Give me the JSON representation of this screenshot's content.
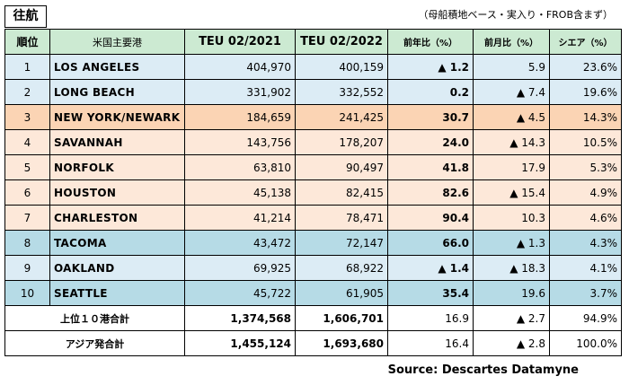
{
  "header": {
    "direction_label": "往航",
    "note": "（母船積地ベース・実入り・FROB含まず）"
  },
  "columns": [
    "順位",
    "米国主要港",
    "TEU 02/2021",
    "TEU 02/2022",
    "前年比（%）",
    "前月比（%）",
    "シエア（%）"
  ],
  "rows": [
    {
      "rank": "1",
      "port": "LOS ANGELES",
      "teu2021": "404,970",
      "teu2022": "400,159",
      "yoy": "▲ 1.2",
      "mom": "5.9",
      "share": "23.6%",
      "style": "blue"
    },
    {
      "rank": "2",
      "port": "LONG BEACH",
      "teu2021": "331,902",
      "teu2022": "332,552",
      "yoy": "0.2",
      "mom": "▲ 7.4",
      "share": "19.6%",
      "style": "blue"
    },
    {
      "rank": "3",
      "port": "NEW YORK/NEWARK",
      "teu2021": "184,659",
      "teu2022": "241,425",
      "yoy": "30.7",
      "mom": "▲ 4.5",
      "share": "14.3%",
      "style": "orange"
    },
    {
      "rank": "4",
      "port": "SAVANNAH",
      "teu2021": "143,756",
      "teu2022": "178,207",
      "yoy": "24.0",
      "mom": "▲ 14.3",
      "share": "10.5%",
      "style": "peach"
    },
    {
      "rank": "5",
      "port": "NORFOLK",
      "teu2021": "63,810",
      "teu2022": "90,497",
      "yoy": "41.8",
      "mom": "17.9",
      "share": "5.3%",
      "style": "peach"
    },
    {
      "rank": "6",
      "port": "HOUSTON",
      "teu2021": "45,138",
      "teu2022": "82,415",
      "yoy": "82.6",
      "mom": "▲ 15.4",
      "share": "4.9%",
      "style": "peach"
    },
    {
      "rank": "7",
      "port": "CHARLESTON",
      "teu2021": "41,214",
      "teu2022": "78,471",
      "yoy": "90.4",
      "mom": "10.3",
      "share": "4.6%",
      "style": "peach"
    },
    {
      "rank": "8",
      "port": "TACOMA",
      "teu2021": "43,472",
      "teu2022": "72,147",
      "yoy": "66.0",
      "mom": "▲ 1.3",
      "share": "4.3%",
      "style": "teal"
    },
    {
      "rank": "9",
      "port": "OAKLAND",
      "teu2021": "69,925",
      "teu2022": "68,922",
      "yoy": "▲ 1.4",
      "mom": "▲ 18.3",
      "share": "4.1%",
      "style": "blue"
    },
    {
      "rank": "10",
      "port": "SEATTLE",
      "teu2021": "45,722",
      "teu2022": "61,905",
      "yoy": "35.4",
      "mom": "19.6",
      "share": "3.7%",
      "style": "teal"
    }
  ],
  "totals": [
    {
      "label": "上位１０港合計",
      "teu2021": "1,374,568",
      "teu2022": "1,606,701",
      "yoy": "16.9",
      "mom": "▲ 2.7",
      "share": "94.9%"
    },
    {
      "label": "アジア発合計",
      "teu2021": "1,455,124",
      "teu2022": "1,693,680",
      "yoy": "16.4",
      "mom": "▲ 2.8",
      "share": "100.0%"
    }
  ],
  "source": "Source: Descartes Datamyne"
}
